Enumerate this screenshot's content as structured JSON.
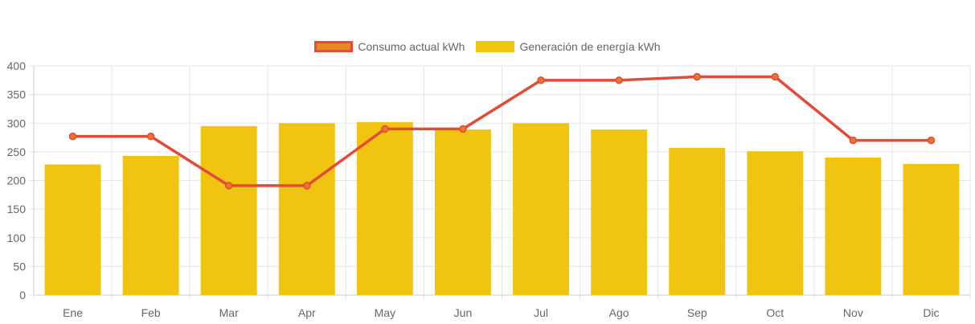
{
  "legend": {
    "line_label": "Consumo actual kWh",
    "bar_label": "Generación de energía kWh"
  },
  "colors": {
    "line": "#e04b3a",
    "line_point_fill": "#e8772e",
    "legend_line_fill": "#e8872a",
    "bar": "#f0c410",
    "grid": "#e5e5e5",
    "tick_text": "#666666"
  },
  "chart_data": {
    "type": "bar",
    "categories": [
      "Ene",
      "Feb",
      "Mar",
      "Apr",
      "May",
      "Jun",
      "Jul",
      "Ago",
      "Sep",
      "Oct",
      "Nov",
      "Dic"
    ],
    "series": [
      {
        "name": "Generación de energía kWh",
        "type": "bar",
        "values": [
          228,
          243,
          295,
          300,
          302,
          289,
          300,
          289,
          257,
          251,
          240,
          229
        ]
      },
      {
        "name": "Consumo actual kWh",
        "type": "line",
        "values": [
          277,
          277,
          191,
          191,
          290,
          290,
          375,
          375,
          381,
          381,
          270,
          270
        ]
      }
    ],
    "yticks": [
      0,
      50,
      100,
      150,
      200,
      250,
      300,
      350,
      400
    ],
    "ylim": [
      0,
      400
    ],
    "grid": true,
    "legend_position": "top"
  }
}
